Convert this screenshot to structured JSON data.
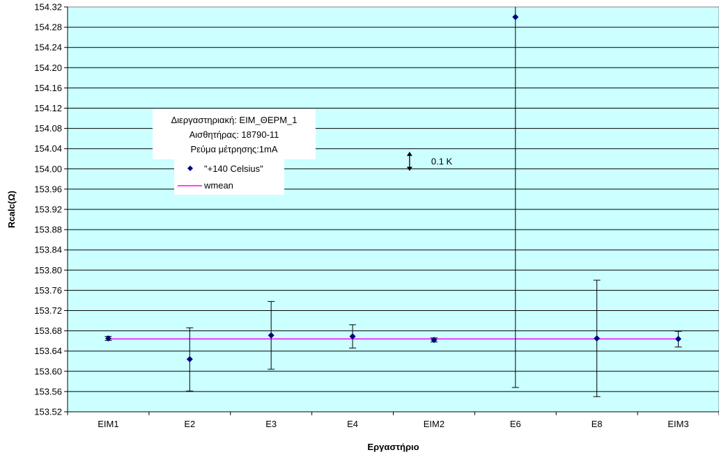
{
  "chart_data": {
    "type": "scatter",
    "xlabel": "Εργαστήριο",
    "ylabel": "Rcalc(Ω)",
    "ylim": [
      153.52,
      154.32
    ],
    "ytick_step": 0.04,
    "yticks": [
      "153.52",
      "153.56",
      "153.60",
      "153.64",
      "153.68",
      "153.72",
      "153.76",
      "153.80",
      "153.84",
      "153.88",
      "153.92",
      "153.96",
      "154.00",
      "154.04",
      "154.08",
      "154.12",
      "154.16",
      "154.20",
      "154.24",
      "154.28",
      "154.32"
    ],
    "categories": [
      "EIM1",
      "E2",
      "E3",
      "E4",
      "EIM2",
      "E6",
      "E8",
      "EIM3"
    ],
    "grid": true,
    "plot_background": "#ccffff",
    "series": [
      {
        "name": "\"+140 Celsius\"",
        "color": "#000080",
        "marker": "diamond",
        "values": [
          153.665,
          153.624,
          153.671,
          153.669,
          153.662,
          154.3,
          153.665,
          153.664
        ],
        "err_low": [
          153.661,
          153.561,
          153.604,
          153.646,
          153.658,
          153.568,
          153.55,
          153.648
        ],
        "err_high": [
          153.669,
          153.686,
          153.738,
          153.692,
          153.666,
          154.33,
          153.78,
          153.679
        ]
      },
      {
        "name": "wmean",
        "color": "#ff00ff",
        "type": "line",
        "value": 153.664
      }
    ],
    "info_box": [
      "Διεργαστηριακή: EIM_ΘΕΡΜ_1",
      "Αισθητήρας: 18790-11",
      "Ρεύμα μέτρησης:1mA"
    ],
    "scale_annotation": {
      "label": "0.1 K",
      "y_from": 153.996,
      "y_to": 154.034,
      "category_position": 4.2
    },
    "legend_position": "upper-left"
  }
}
